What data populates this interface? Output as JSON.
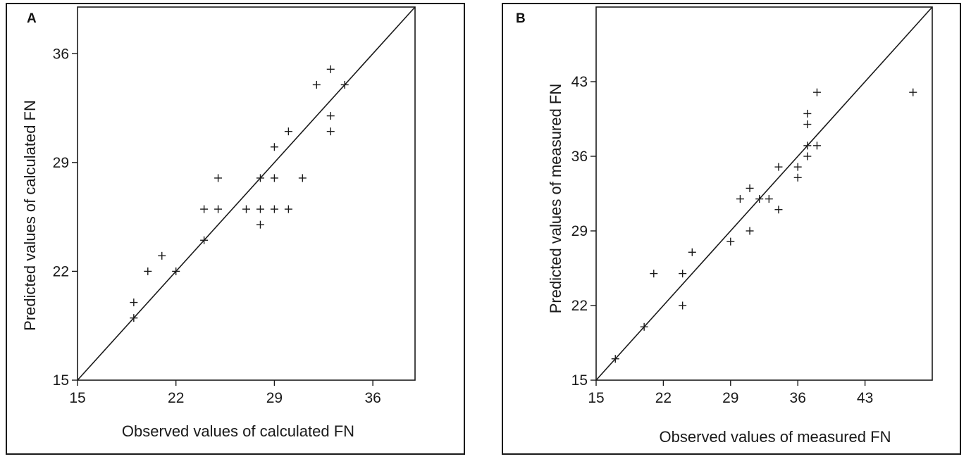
{
  "chart_data": [
    {
      "type": "scatter",
      "panel_label": "A",
      "xlabel": "Observed values of  calculated FN",
      "ylabel": "Predicted values of calculated FN",
      "xlim": [
        15,
        39
      ],
      "ylim": [
        15,
        39
      ],
      "xticks": [
        15,
        22,
        29,
        36
      ],
      "yticks": [
        15,
        22,
        29,
        36
      ],
      "reference_line": "y = x",
      "marker": "plus",
      "grid": false,
      "points": [
        {
          "x": 19,
          "y": 19
        },
        {
          "x": 19,
          "y": 20
        },
        {
          "x": 20,
          "y": 22
        },
        {
          "x": 21,
          "y": 23
        },
        {
          "x": 22,
          "y": 22
        },
        {
          "x": 24,
          "y": 24
        },
        {
          "x": 24,
          "y": 26
        },
        {
          "x": 25,
          "y": 26
        },
        {
          "x": 25,
          "y": 28
        },
        {
          "x": 27,
          "y": 26
        },
        {
          "x": 28,
          "y": 26
        },
        {
          "x": 28,
          "y": 25
        },
        {
          "x": 28,
          "y": 28
        },
        {
          "x": 29,
          "y": 26
        },
        {
          "x": 29,
          "y": 28
        },
        {
          "x": 29,
          "y": 30
        },
        {
          "x": 30,
          "y": 26
        },
        {
          "x": 30,
          "y": 31
        },
        {
          "x": 31,
          "y": 28
        },
        {
          "x": 32,
          "y": 34
        },
        {
          "x": 33,
          "y": 35
        },
        {
          "x": 33,
          "y": 32
        },
        {
          "x": 33,
          "y": 31
        },
        {
          "x": 34,
          "y": 34
        }
      ]
    },
    {
      "type": "scatter",
      "panel_label": "B",
      "xlabel": "Observed values of measured  FN",
      "ylabel": "Predicted values of measured  FN",
      "xlim": [
        15,
        50
      ],
      "ylim": [
        15,
        50
      ],
      "xticks": [
        15,
        22,
        29,
        36,
        43
      ],
      "yticks": [
        15,
        22,
        29,
        36,
        43
      ],
      "reference_line": "y = x",
      "marker": "plus",
      "grid": false,
      "points": [
        {
          "x": 17,
          "y": 17
        },
        {
          "x": 20,
          "y": 20
        },
        {
          "x": 21,
          "y": 25
        },
        {
          "x": 24,
          "y": 25
        },
        {
          "x": 24,
          "y": 22
        },
        {
          "x": 25,
          "y": 27
        },
        {
          "x": 29,
          "y": 28
        },
        {
          "x": 30,
          "y": 32
        },
        {
          "x": 31,
          "y": 33
        },
        {
          "x": 31,
          "y": 29
        },
        {
          "x": 32,
          "y": 32
        },
        {
          "x": 33,
          "y": 32
        },
        {
          "x": 34,
          "y": 31
        },
        {
          "x": 34,
          "y": 35
        },
        {
          "x": 36,
          "y": 35
        },
        {
          "x": 36,
          "y": 34
        },
        {
          "x": 37,
          "y": 36
        },
        {
          "x": 37,
          "y": 37
        },
        {
          "x": 37,
          "y": 39
        },
        {
          "x": 37,
          "y": 40
        },
        {
          "x": 38,
          "y": 37
        },
        {
          "x": 38,
          "y": 42
        },
        {
          "x": 48,
          "y": 42
        }
      ]
    }
  ]
}
